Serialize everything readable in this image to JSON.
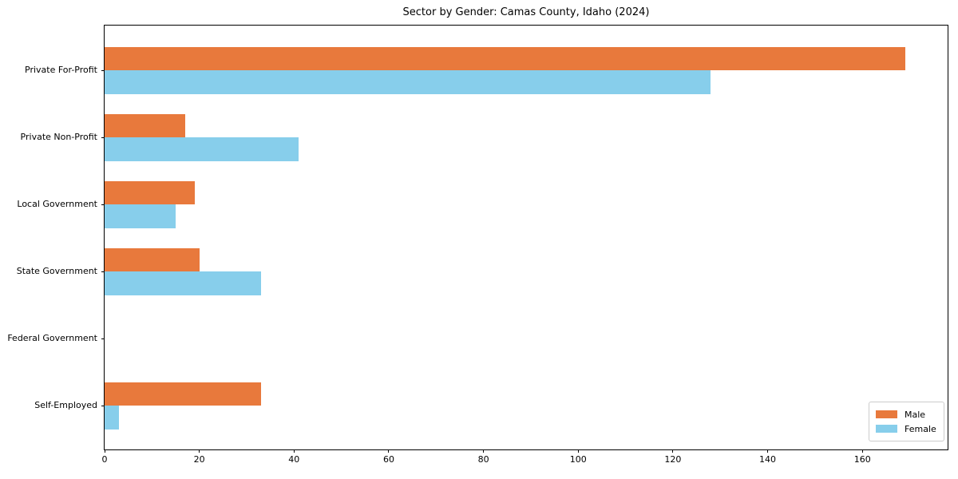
{
  "chart_data": {
    "type": "bar",
    "orientation": "horizontal",
    "title": "Sector by Gender: Camas County, Idaho (2024)",
    "categories": [
      "Private For-Profit",
      "Private Non-Profit",
      "Local Government",
      "State Government",
      "Federal Government",
      "Self-Employed"
    ],
    "series": [
      {
        "name": "Male",
        "color": "#e8793c",
        "values": [
          169,
          17,
          19,
          20,
          0,
          33
        ]
      },
      {
        "name": "Female",
        "color": "#87ceeb",
        "values": [
          128,
          41,
          15,
          33,
          0,
          3
        ]
      }
    ],
    "xticks": [
      0,
      20,
      40,
      60,
      80,
      100,
      120,
      140,
      160
    ],
    "xlim": [
      0,
      178
    ],
    "grid": false,
    "legend_position": "lower right"
  },
  "colors": {
    "background": "#ffffff",
    "axis": "#000000",
    "text": "#000000",
    "legend_border": "#cccccc",
    "legend_background": "#ffffff"
  }
}
